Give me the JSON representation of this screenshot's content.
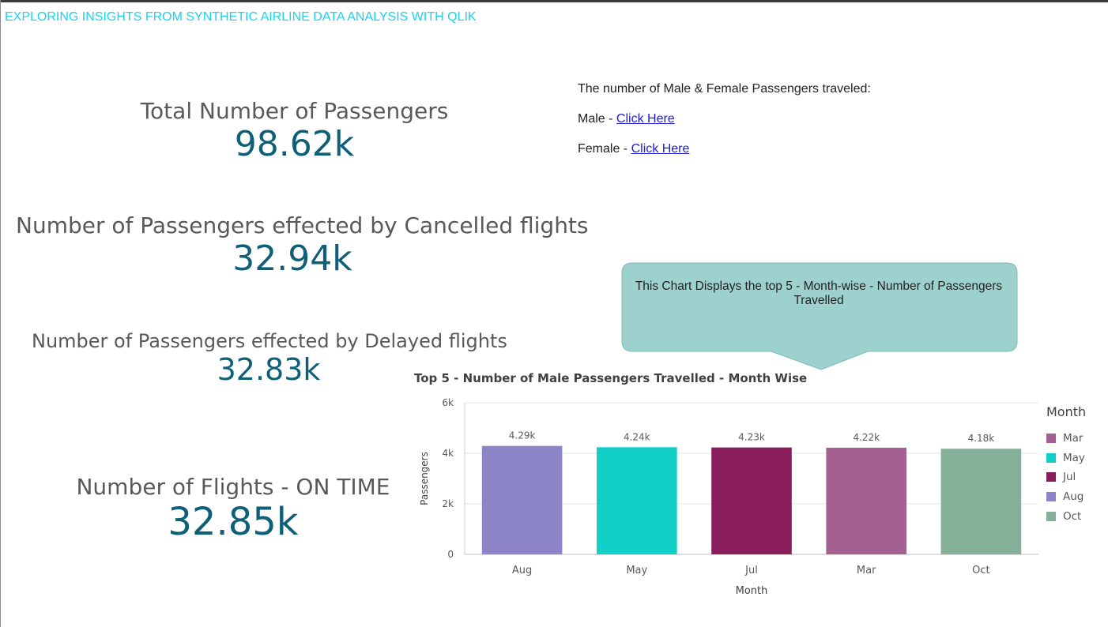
{
  "app": {
    "title": "EXPLORING INSIGHTS FROM SYNTHETIC AIRLINE DATA ANALYSIS WITH QLIK"
  },
  "kpis": [
    {
      "label": "Total Number of Passengers",
      "value": "98.62k"
    },
    {
      "label": "Number of Passengers effected by Cancelled flights",
      "value": "32.94k"
    },
    {
      "label": "Number of Passengers effected by Delayed flights",
      "value": "32.83k"
    },
    {
      "label": "Number of Flights - ON TIME",
      "value": "32.85k"
    }
  ],
  "gender": {
    "heading": "The number of Male & Female Passengers traveled:",
    "male_prefix": "Male - ",
    "male_link": "Click Here",
    "female_prefix": "Female - ",
    "female_link": "Click Here",
    "link_color": "#2020d0"
  },
  "callout": {
    "text": "This Chart Displays the top 5 - Month-wise - Number of Passengers Travelled",
    "fill": "#9dd1ce"
  },
  "chart_data": {
    "type": "bar",
    "title": "Top 5 - Number of Male Passengers Travelled - Month Wise",
    "xlabel": "Month",
    "ylabel": "Passengers",
    "categories": [
      "Aug",
      "May",
      "Jul",
      "Mar",
      "Oct"
    ],
    "values": [
      4290,
      4240,
      4230,
      4220,
      4180
    ],
    "data_labels": [
      "4.29k",
      "4.24k",
      "4.23k",
      "4.22k",
      "4.18k"
    ],
    "colors": [
      "#8c86c8",
      "#10d0c8",
      "#8a1e5c",
      "#a46090",
      "#84b09a"
    ],
    "ylim": [
      0,
      6000
    ],
    "yticks": [
      0,
      2000,
      4000,
      6000
    ],
    "ytick_labels": [
      "0",
      "2k",
      "4k",
      "6k"
    ],
    "grid": true,
    "legend": {
      "title": "Month",
      "position": "right",
      "items": [
        {
          "label": "Mar",
          "color": "#a46090"
        },
        {
          "label": "May",
          "color": "#10d0c8"
        },
        {
          "label": "Jul",
          "color": "#8a1e5c"
        },
        {
          "label": "Aug",
          "color": "#8c86c8"
        },
        {
          "label": "Oct",
          "color": "#84b09a"
        }
      ]
    }
  }
}
